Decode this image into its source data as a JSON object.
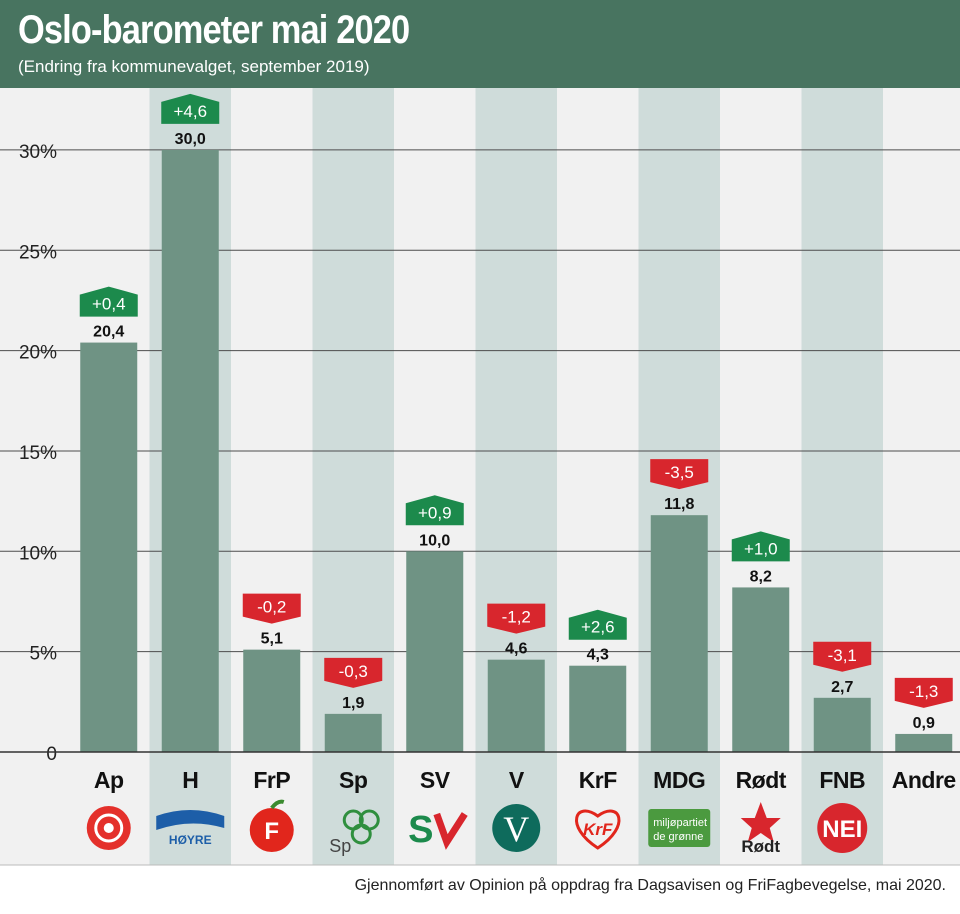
{
  "header": {
    "title": "Oslo-barometer mai 2020",
    "subtitle": "(Endring fra kommunevalget, september 2019)"
  },
  "footer": {
    "note": "Gjennomført av Opinion på oppdrag fra Dagsavisen og FriFagbevegelse, mai 2020."
  },
  "colors": {
    "header_bg": "#487460",
    "bar": "#6f9384",
    "band_light": "#f1f1f1",
    "band_dark": "#cfdcda",
    "positive": "#1c8a4c",
    "negative": "#d8262d"
  },
  "chart_data": {
    "type": "bar",
    "categories": [
      "Ap",
      "H",
      "FrP",
      "Sp",
      "SV",
      "V",
      "KrF",
      "MDG",
      "Rødt",
      "FNB",
      "Andre"
    ],
    "values": [
      20.4,
      30.0,
      5.1,
      1.9,
      10.0,
      4.6,
      4.3,
      11.8,
      8.2,
      2.7,
      0.9
    ],
    "value_labels": [
      "20,4",
      "30,0",
      "5,1",
      "1,9",
      "10,0",
      "4,6",
      "4,3",
      "11,8",
      "8,2",
      "2,7",
      "0,9"
    ],
    "changes": [
      0.4,
      4.6,
      -0.2,
      -0.3,
      0.9,
      -1.2,
      2.6,
      -3.5,
      1.0,
      -3.1,
      -1.3
    ],
    "change_labels": [
      "+0,4",
      "+4,6",
      "-0,2",
      "-0,3",
      "+0,9",
      "-1,2",
      "+2,6",
      "-3,5",
      "+1,0",
      "-3,1",
      "-1,3"
    ],
    "yticks": [
      0,
      5,
      10,
      15,
      20,
      25,
      30
    ],
    "ytick_labels": [
      "0",
      "5%",
      "10%",
      "15%",
      "20%",
      "25%",
      "30%"
    ],
    "ylim": [
      0,
      30.5
    ],
    "grid": true,
    "logos": [
      "Ap-rose-logo",
      "Høyre-logo",
      "FrP-apple-logo",
      "Sp-clover-logo",
      "SV-logo",
      "Venstre-logo",
      "KrF-logo",
      "MDG-logo",
      "Rødt-star-logo",
      "FNB-logo",
      ""
    ],
    "logo_texts": [
      "",
      "HØYRE",
      "",
      "Sp",
      "S",
      "V",
      "KrF",
      "miljøpartiet de grønne",
      "Rødt",
      "NEI",
      ""
    ]
  }
}
